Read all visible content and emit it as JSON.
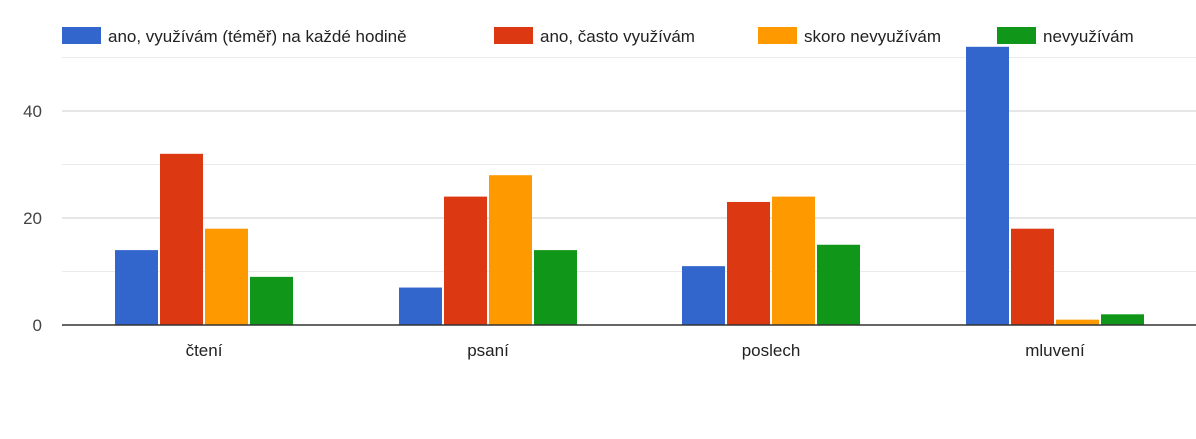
{
  "chart_data": {
    "type": "bar",
    "categories": [
      "čtení",
      "psaní",
      "poslech",
      "mluvení"
    ],
    "series": [
      {
        "name": "ano, využívám (téměř) na každé hodině",
        "color": "#3366cc",
        "values": [
          14,
          7,
          11,
          52
        ]
      },
      {
        "name": "ano, často využívám",
        "color": "#dc3912",
        "values": [
          32,
          24,
          23,
          18
        ]
      },
      {
        "name": "skoro nevyužívám",
        "color": "#ff9900",
        "values": [
          18,
          28,
          24,
          1
        ]
      },
      {
        "name": "nevyužívám",
        "color": "#109618",
        "values": [
          9,
          14,
          15,
          2
        ]
      }
    ],
    "yticks": [
      0,
      20,
      40
    ],
    "ylim": [
      0,
      52
    ],
    "grid": true,
    "legend_position": "top"
  }
}
